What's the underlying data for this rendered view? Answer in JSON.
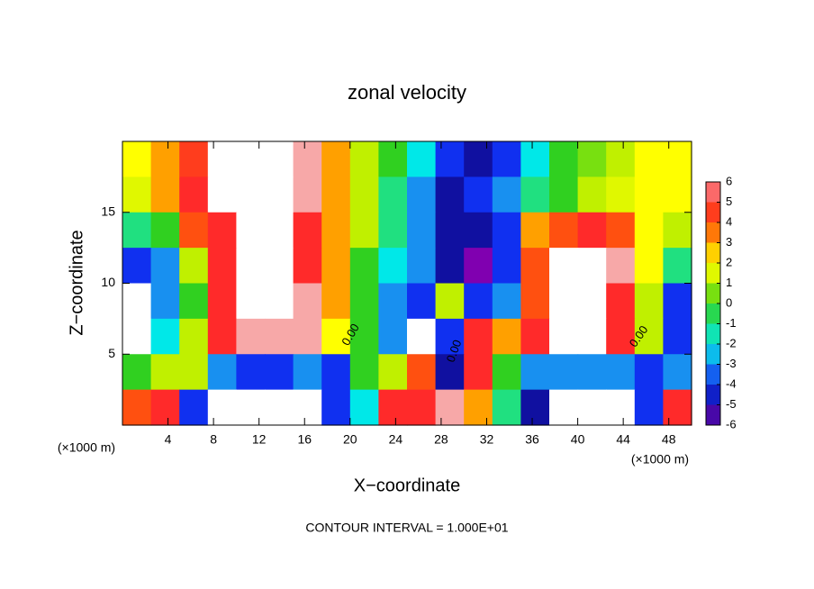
{
  "chart_data": {
    "type": "heatmap",
    "title": "zonal velocity",
    "xlabel": "X−coordinate",
    "ylabel": "Z−coordinate",
    "x_unit_label": "(×1000 m)",
    "y_unit_label": "(×1000 m)",
    "footer": "CONTOUR INTERVAL = 1.000E+01",
    "annotations": [
      "0.00",
      "0.00",
      "0.00"
    ],
    "xlim": [
      0,
      50
    ],
    "ylim": [
      0,
      20
    ],
    "xticks": [
      4,
      8,
      12,
      16,
      20,
      24,
      28,
      32,
      36,
      40,
      44,
      48
    ],
    "yticks": [
      5,
      10,
      15
    ],
    "x": [
      1.25,
      3.75,
      6.25,
      8.75,
      11.25,
      13.75,
      16.25,
      18.75,
      21.25,
      23.75,
      26.25,
      28.75,
      31.25,
      33.75,
      36.25,
      38.75,
      41.25,
      43.75,
      46.25,
      48.75
    ],
    "y": [
      18.75,
      16.25,
      13.75,
      11.25,
      8.75,
      6.25,
      3.75,
      1.25
    ],
    "z": [
      [
        2,
        3,
        4.5,
        7,
        7,
        7,
        6,
        3,
        1,
        0,
        -2,
        -4,
        -5,
        -4,
        -2,
        0,
        0.5,
        1,
        2,
        2
      ],
      [
        1.5,
        3,
        5,
        7,
        7,
        7,
        6,
        3,
        1,
        -1,
        -3,
        -5,
        -4,
        -3,
        -1,
        0,
        1,
        1.5,
        2,
        2
      ],
      [
        -1,
        0,
        4,
        5,
        7,
        7,
        5,
        3,
        1,
        -1,
        -3,
        -5,
        -5,
        -4,
        3,
        4,
        5,
        4,
        2,
        1
      ],
      [
        -4,
        -3,
        1,
        5,
        7,
        7,
        5,
        3,
        0,
        -2,
        -3,
        -5,
        -6,
        -4,
        4,
        7,
        7,
        6,
        2,
        -1
      ],
      [
        7,
        -3,
        0,
        5,
        7,
        7,
        6,
        3,
        0,
        -3,
        -4,
        1,
        -4,
        -3,
        4,
        7,
        7,
        5,
        1,
        -4
      ],
      [
        7,
        -2,
        1,
        5,
        6,
        6,
        6,
        2,
        0,
        -3,
        7,
        -4,
        5,
        3,
        5,
        7,
        7,
        5,
        1,
        -4
      ],
      [
        0,
        1,
        1,
        -3,
        -4,
        -4,
        -3,
        -4,
        0,
        1,
        4,
        -5,
        5,
        0,
        -3,
        -3,
        -3,
        -3,
        -4,
        -3
      ],
      [
        4,
        5,
        -4,
        7,
        7,
        7,
        7,
        -4,
        -2,
        5,
        5,
        6,
        3,
        -1,
        -5,
        7,
        7,
        7,
        -4,
        5
      ]
    ],
    "colorbar": {
      "ticks": [
        6,
        5,
        4,
        3,
        2,
        1,
        0,
        -1,
        -2,
        -3,
        -4,
        -5,
        -6
      ],
      "colors": [
        "#f7a8a8",
        "#ff2a2a",
        "#ff5010",
        "#ffa000",
        "#ffff00",
        "#c0f000",
        "#30d020",
        "#20e080",
        "#00e8e8",
        "#1890f0",
        "#1030f0",
        "#1010a0",
        "#8000b0"
      ],
      "above_color": "#ffffff"
    }
  }
}
